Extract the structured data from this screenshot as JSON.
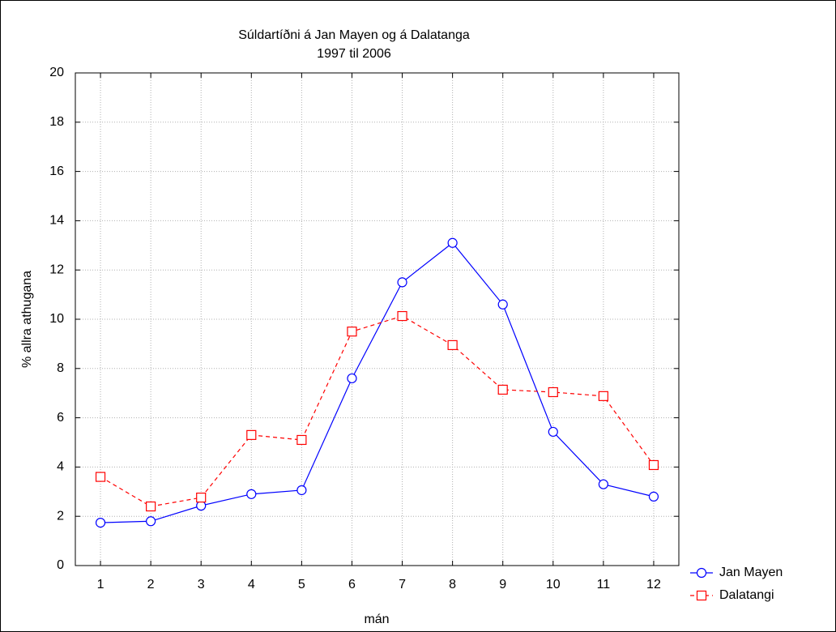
{
  "chart_data": {
    "type": "line",
    "title": "Súldartíðni á Jan Mayen og á Dalatanga",
    "subtitle": "1997 til 2006",
    "x_label": "mán",
    "y_label": "% allra athugana",
    "x": [
      1,
      2,
      3,
      4,
      5,
      6,
      7,
      8,
      9,
      10,
      11,
      12
    ],
    "series": [
      {
        "name": "Jan Mayen",
        "color": "#0000ff",
        "line_style": "solid",
        "marker": "circle",
        "values": [
          1.74,
          1.8,
          2.43,
          2.9,
          3.06,
          7.6,
          11.5,
          13.1,
          10.6,
          5.43,
          3.3,
          2.8
        ]
      },
      {
        "name": "Dalatangi",
        "color": "#ff0000",
        "line_style": "dashed",
        "marker": "square",
        "values": [
          3.6,
          2.4,
          2.76,
          5.3,
          5.1,
          9.5,
          10.13,
          8.95,
          7.14,
          7.04,
          6.88,
          4.08
        ]
      }
    ],
    "xlim": [
      0.5,
      12.5
    ],
    "xticks": [
      1,
      2,
      3,
      4,
      5,
      6,
      7,
      8,
      9,
      10,
      11,
      12
    ],
    "ylim": [
      0,
      20
    ],
    "yticks": [
      0,
      2,
      4,
      6,
      8,
      10,
      12,
      14,
      16,
      18,
      20
    ],
    "grid": true,
    "legend": "bottom-right-outside"
  }
}
